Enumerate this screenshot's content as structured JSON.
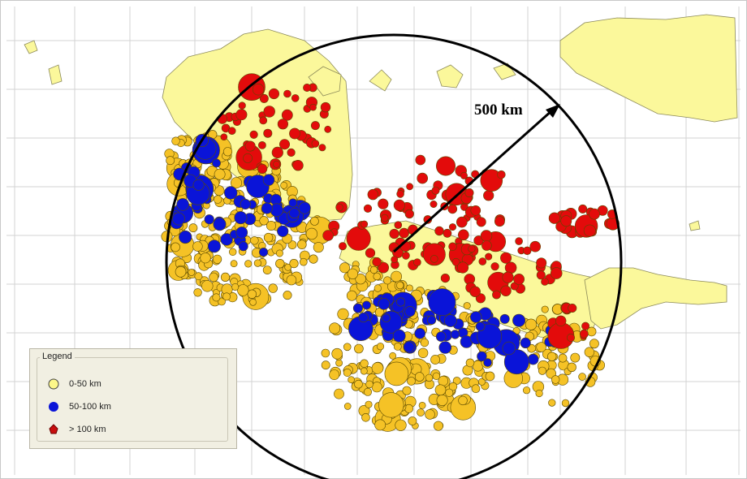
{
  "distance_label": "500 km",
  "legend": {
    "title": "Legend",
    "items": [
      {
        "label": "0-50 km",
        "color": "#f5c226",
        "shape": "circle"
      },
      {
        "label": "50-100 km",
        "color": "#0a14d8",
        "shape": "circle"
      },
      {
        "label": "> 100 km",
        "color": "#c80e0e",
        "shape": "marker"
      }
    ]
  },
  "colors": {
    "land": "#fbf89b",
    "land_outline": "#8c8a5a",
    "grid": "#d3d3d3",
    "water": "#ffffff",
    "shallow": "#f5c226",
    "intermediate": "#0a14d8",
    "deep": "#e30b0b"
  }
}
